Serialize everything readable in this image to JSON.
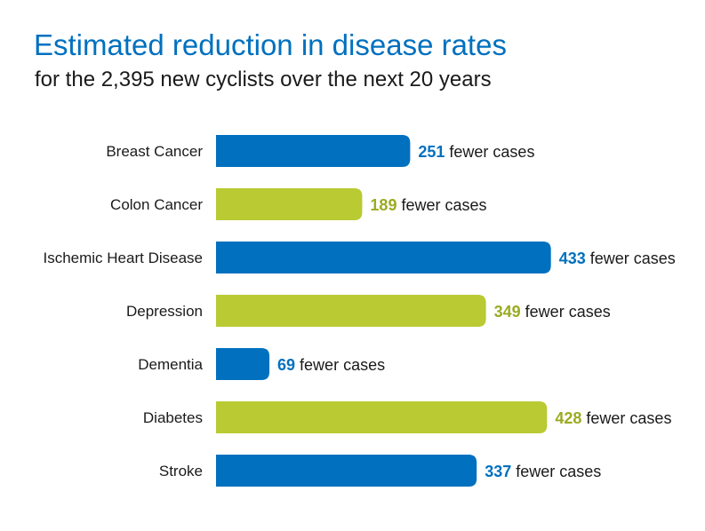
{
  "chart_data": {
    "type": "bar",
    "orientation": "horizontal",
    "title": "Estimated reduction in disease rates",
    "subtitle": "for the 2,395 new cyclists over the next 20 years",
    "categories": [
      "Breast Cancer",
      "Colon Cancer",
      "Ischemic Heart Disease",
      "Depression",
      "Dementia",
      "Diabetes",
      "Stroke"
    ],
    "values": [
      251,
      189,
      433,
      349,
      69,
      428,
      337
    ],
    "value_suffix": "fewer cases",
    "bar_colors": [
      "#0070BF",
      "#B9CA33",
      "#0070BF",
      "#B9CA33",
      "#0070BF",
      "#B9CA33",
      "#0070BF"
    ],
    "label_colors": [
      "#0070BF",
      "#9AAB22",
      "#0070BF",
      "#9AAB22",
      "#0070BF",
      "#9AAB22",
      "#0070BF"
    ],
    "grid": false,
    "legend": "none"
  }
}
